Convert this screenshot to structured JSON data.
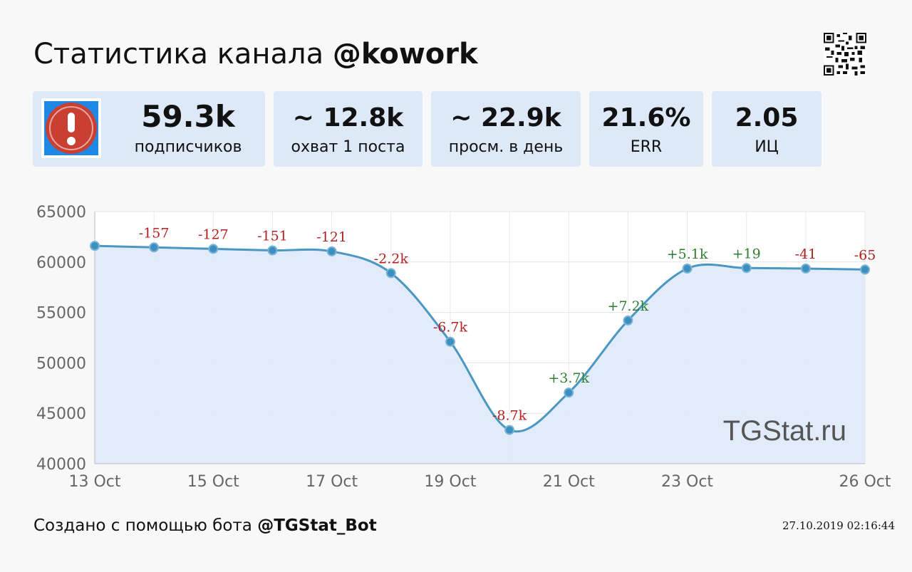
{
  "header": {
    "title_prefix": "Статистика канала ",
    "channel": "@kowork"
  },
  "stats": {
    "subscribers": {
      "value": "59.3k",
      "label": "подписчиков"
    },
    "reach": {
      "value": "~ 12.8k",
      "label": "охват 1 поста"
    },
    "views_per_day": {
      "value": "~ 22.9k",
      "label": "просм. в день"
    },
    "err": {
      "value": "21.6%",
      "label": "ERR"
    },
    "ci": {
      "value": "2.05",
      "label": "ИЦ"
    }
  },
  "icons": {
    "avatar": "warning-exclamation-icon",
    "qr": "qr-code-icon"
  },
  "colors": {
    "line": "#4a97c2",
    "area": "#dfeaf9",
    "negative": "#b22222",
    "positive": "#2e7d32",
    "avatar_bg": "#1e88e5",
    "avatar_circle": "#c94033"
  },
  "chart_data": {
    "type": "area",
    "title": "",
    "xlabel": "",
    "ylabel": "",
    "watermark": "TGStat.ru",
    "ylim": [
      40000,
      65000
    ],
    "yticks": [
      40000,
      45000,
      50000,
      55000,
      60000,
      65000
    ],
    "x": [
      "13 Oct",
      "14 Oct",
      "15 Oct",
      "16 Oct",
      "17 Oct",
      "18 Oct",
      "19 Oct",
      "20 Oct",
      "21 Oct",
      "22 Oct",
      "23 Oct",
      "24 Oct",
      "25 Oct",
      "26 Oct"
    ],
    "xtick_labels": [
      "13 Oct",
      "15 Oct",
      "17 Oct",
      "19 Oct",
      "21 Oct",
      "23 Oct",
      "26 Oct"
    ],
    "grid": true,
    "series": [
      {
        "values": [
          61600,
          61450,
          61300,
          61150,
          61050,
          58900,
          52100,
          43350,
          47050,
          54200,
          59350,
          59400,
          59350,
          59250
        ],
        "labels": [
          "",
          "-157",
          "-127",
          "-151",
          "-121",
          "-2.2k",
          "-6.7k",
          "-8.7k",
          "+3.7k",
          "+7.2k",
          "+5.1k",
          "+19",
          "-41",
          "-65"
        ]
      }
    ]
  },
  "footer": {
    "created_prefix": "Создано с помощью бота ",
    "bot": "@TGStat_Bot",
    "timestamp": "27.10.2019 02:16:44"
  }
}
